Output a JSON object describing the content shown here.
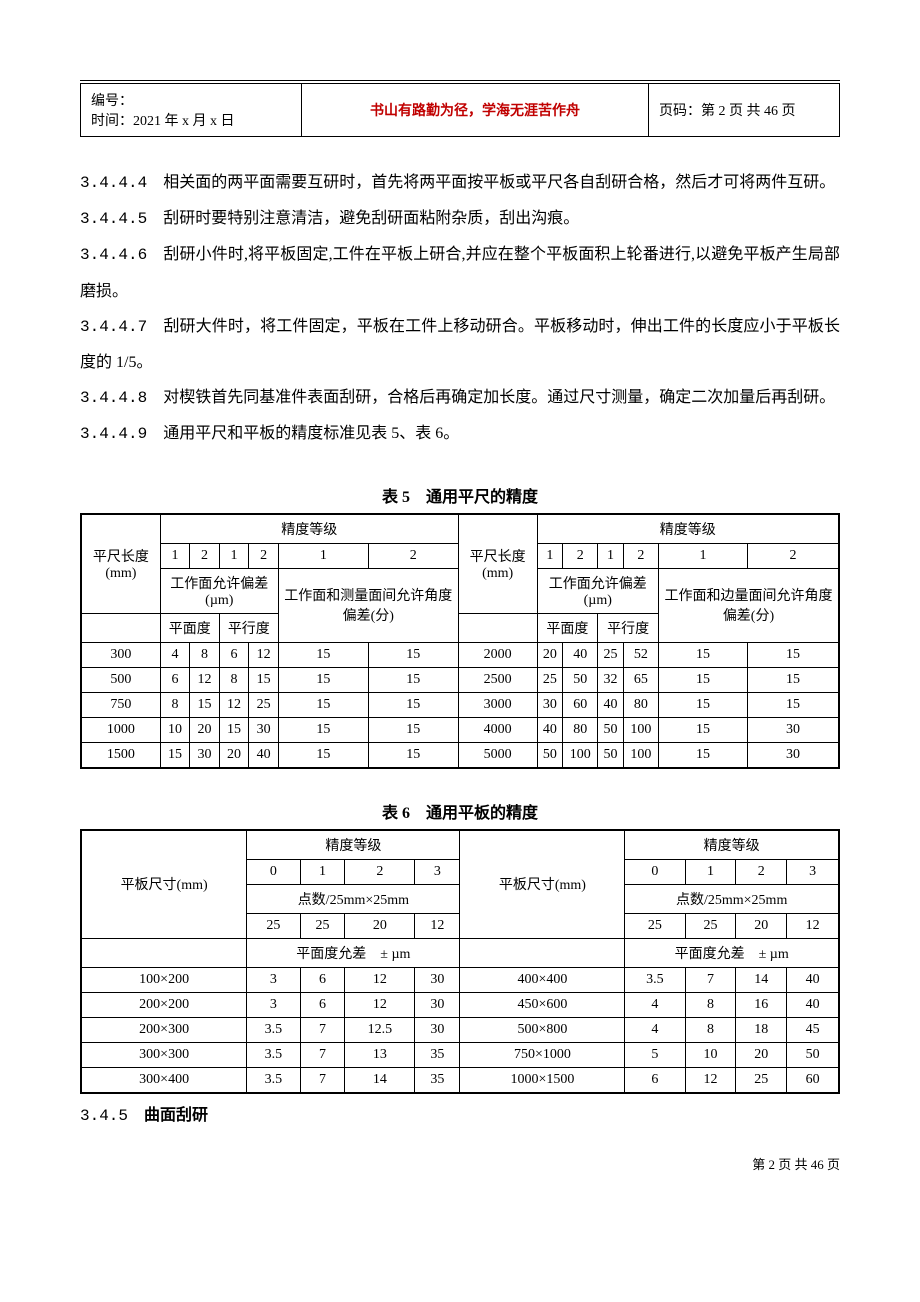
{
  "header": {
    "bianhao_label": "编号：",
    "time_label": "时间：",
    "time_value": "2021 年 x 月 x 日",
    "motto": "书山有路勤为径，学海无涯苦作舟",
    "page_label": "页码：",
    "page_value": "第 2 页  共 46 页"
  },
  "paragraphs": {
    "p1_num": "3.4.4.4",
    "p1": "　相关面的两平面需要互研时，首先将两平面按平板或平尺各自刮研合格，然后才可将两件互研。",
    "p2_num": "3.4.4.5",
    "p2": "　刮研时要特别注意清洁，避免刮研面粘附杂质，刮出沟痕。",
    "p3_num": "3.4.4.6",
    "p3": "　刮研小件时,将平板固定,工件在平板上研合,并应在整个平板面积上轮番进行,以避免平板产生局部磨损。",
    "p4_num": "3.4.4.7",
    "p4": "　刮研大件时，将工件固定，平板在工件上移动研合。平板移动时，伸出工件的长度应小于平板长度的 1/5。",
    "p5_num": "3.4.4.8",
    "p5": "　对楔铁首先同基准件表面刮研，合格后再确定加长度。通过尺寸测量，确定二次加量后再刮研。",
    "p6_num": "3.4.4.9",
    "p6": "　通用平尺和平板的精度标准见表 5、表 6。"
  },
  "table5": {
    "caption": "表 5　通用平尺的精度",
    "col_ruler_len": "平尺长度(mm)",
    "col_precision": "精度等级",
    "col_allow_dev": "工作面允许偏差(µm)",
    "col_flat": "平面度",
    "col_parallel": "平行度",
    "col_angle_left": "工作面和测量面间允许角度偏差(分)",
    "col_angle_right": "工作面和边量面间允许角度偏差(分)",
    "grade1": "1",
    "grade2": "2",
    "rows_left": [
      [
        "300",
        "4",
        "8",
        "6",
        "12",
        "15",
        "15"
      ],
      [
        "500",
        "6",
        "12",
        "8",
        "15",
        "15",
        "15"
      ],
      [
        "750",
        "8",
        "15",
        "12",
        "25",
        "15",
        "15"
      ],
      [
        "1000",
        "10",
        "20",
        "15",
        "30",
        "15",
        "15"
      ],
      [
        "1500",
        "15",
        "30",
        "20",
        "40",
        "15",
        "15"
      ]
    ],
    "rows_right": [
      [
        "2000",
        "20",
        "40",
        "25",
        "52",
        "15",
        "15"
      ],
      [
        "2500",
        "25",
        "50",
        "32",
        "65",
        "15",
        "15"
      ],
      [
        "3000",
        "30",
        "60",
        "40",
        "80",
        "15",
        "15"
      ],
      [
        "4000",
        "40",
        "80",
        "50",
        "100",
        "15",
        "30"
      ],
      [
        "5000",
        "50",
        "100",
        "50",
        "100",
        "15",
        "30"
      ]
    ]
  },
  "table6": {
    "caption": "表 6　通用平板的精度",
    "col_plate_size": "平板尺寸(mm)",
    "col_plate_size_right": "平板尺寸(mm)",
    "col_precision": "精度等级",
    "g0": "0",
    "g1": "1",
    "g2": "2",
    "g3": "3",
    "col_points": "点数/25mm×25mm",
    "pts": [
      "25",
      "25",
      "20",
      "12"
    ],
    "col_flat_tol": "平面度允差　± µm",
    "rows_left": [
      [
        "100×200",
        "3",
        "6",
        "12",
        "30"
      ],
      [
        "200×200",
        "3",
        "6",
        "12",
        "30"
      ],
      [
        "200×300",
        "3.5",
        "7",
        "12.5",
        "30"
      ],
      [
        "300×300",
        "3.5",
        "7",
        "13",
        "35"
      ],
      [
        "300×400",
        "3.5",
        "7",
        "14",
        "35"
      ]
    ],
    "rows_right": [
      [
        "400×400",
        "3.5",
        "7",
        "14",
        "40"
      ],
      [
        "450×600",
        "4",
        "8",
        "16",
        "40"
      ],
      [
        "500×800",
        "4",
        "8",
        "18",
        "45"
      ],
      [
        "750×1000",
        "5",
        "10",
        "20",
        "50"
      ],
      [
        "1000×1500",
        "6",
        "12",
        "25",
        "60"
      ]
    ]
  },
  "section": {
    "num": "3.4.5",
    "title": "　曲面刮研"
  },
  "footer": "第  2  页  共  46  页"
}
